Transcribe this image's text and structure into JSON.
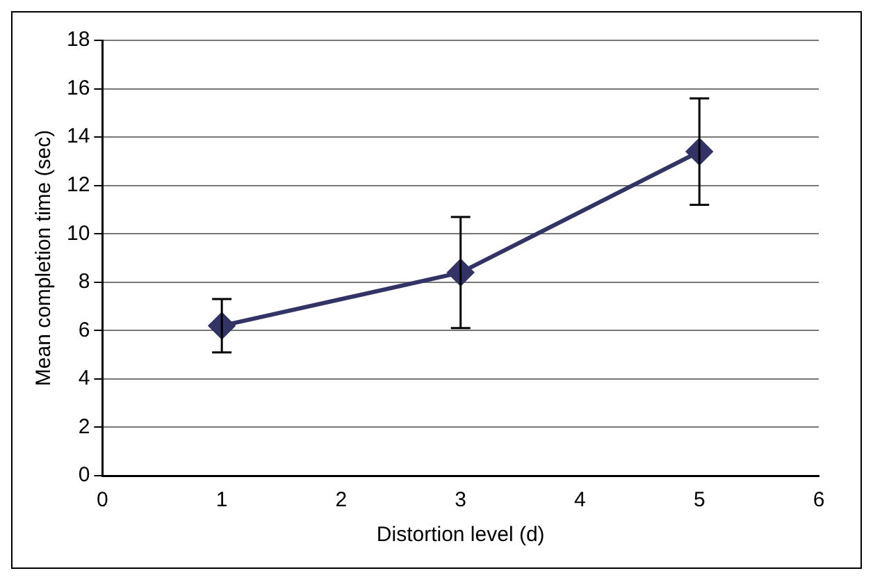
{
  "chart_data": {
    "type": "line",
    "xlabel": "Distortion level (d)",
    "ylabel": "Mean completion time (sec)",
    "x": [
      1,
      3,
      5
    ],
    "series": [
      {
        "color": "#333366",
        "values": [
          6.2,
          8.4,
          13.4
        ],
        "errors": [
          1.1,
          2.3,
          2.2
        ]
      }
    ],
    "xlim": [
      0,
      6
    ],
    "xticks": [
      0,
      1,
      2,
      3,
      4,
      5,
      6
    ],
    "ylim": [
      0,
      18
    ],
    "yticks": [
      0,
      2,
      4,
      6,
      8,
      10,
      12,
      14,
      16,
      18
    ],
    "grid": "y",
    "legend": false,
    "marker": "diamond",
    "line_style": "solid"
  }
}
